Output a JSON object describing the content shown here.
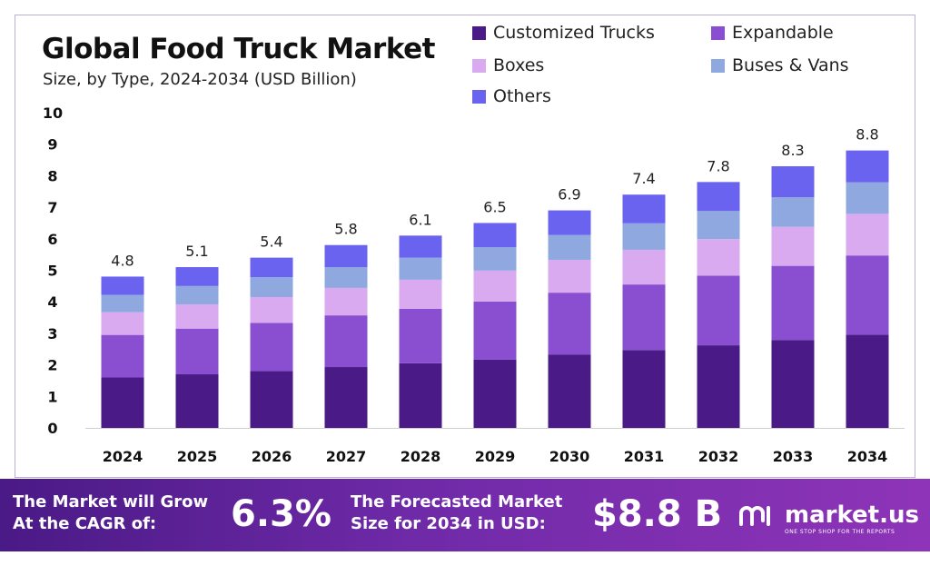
{
  "header": {
    "title": "Global Food Truck Market",
    "subtitle": "Size, by Type, 2024-2034 (USD Billion)"
  },
  "legend": [
    {
      "label": "Customized Trucks",
      "color": "#4a1a86"
    },
    {
      "label": "Expandable",
      "color": "#8a4fd0"
    },
    {
      "label": "Boxes",
      "color": "#d9aaf0"
    },
    {
      "label": "Buses & Vans",
      "color": "#8fa8e0"
    },
    {
      "label": "Others",
      "color": "#6a63f0"
    }
  ],
  "chart_data": {
    "type": "bar",
    "stacked": true,
    "categories": [
      "2024",
      "2025",
      "2026",
      "2027",
      "2028",
      "2029",
      "2030",
      "2031",
      "2032",
      "2033",
      "2034"
    ],
    "series": [
      {
        "name": "Customized Trucks",
        "color": "#4a1a86",
        "values": [
          1.6,
          1.7,
          1.8,
          1.93,
          2.05,
          2.17,
          2.33,
          2.47,
          2.62,
          2.79,
          2.96
        ]
      },
      {
        "name": "Expandable",
        "color": "#8a4fd0",
        "values": [
          1.35,
          1.45,
          1.53,
          1.64,
          1.73,
          1.84,
          1.96,
          2.08,
          2.21,
          2.35,
          2.51
        ]
      },
      {
        "name": "Boxes",
        "color": "#d9aaf0",
        "values": [
          0.72,
          0.77,
          0.82,
          0.87,
          0.92,
          0.98,
          1.04,
          1.1,
          1.16,
          1.24,
          1.32
        ]
      },
      {
        "name": "Buses & Vans",
        "color": "#8fa8e0",
        "values": [
          0.55,
          0.58,
          0.63,
          0.66,
          0.7,
          0.74,
          0.79,
          0.84,
          0.89,
          0.94,
          1.0
        ]
      },
      {
        "name": "Others",
        "color": "#6a63f0",
        "values": [
          0.58,
          0.6,
          0.62,
          0.7,
          0.7,
          0.77,
          0.78,
          0.91,
          0.92,
          0.98,
          1.01
        ]
      }
    ],
    "totals": [
      "4.8",
      "5.1",
      "5.4",
      "5.8",
      "6.1",
      "6.5",
      "6.9",
      "7.4",
      "7.8",
      "8.3",
      "8.8"
    ],
    "y_ticks": [
      "0",
      "1",
      "2",
      "3",
      "4",
      "5",
      "6",
      "7",
      "8",
      "9",
      "10"
    ],
    "ylim": [
      0,
      10
    ],
    "grid": false,
    "legend_position": "top-right"
  },
  "footer": {
    "cagr_label_line1": "The Market will Grow",
    "cagr_label_line2": "At the CAGR of:",
    "cagr_value": "6.3%",
    "forecast_label_line1": "The Forecasted Market",
    "forecast_label_line2": "Size for 2034 in USD:",
    "forecast_value": "$8.8 B",
    "brand_name": "market.us",
    "brand_tagline": "ONE STOP SHOP FOR THE REPORTS"
  }
}
